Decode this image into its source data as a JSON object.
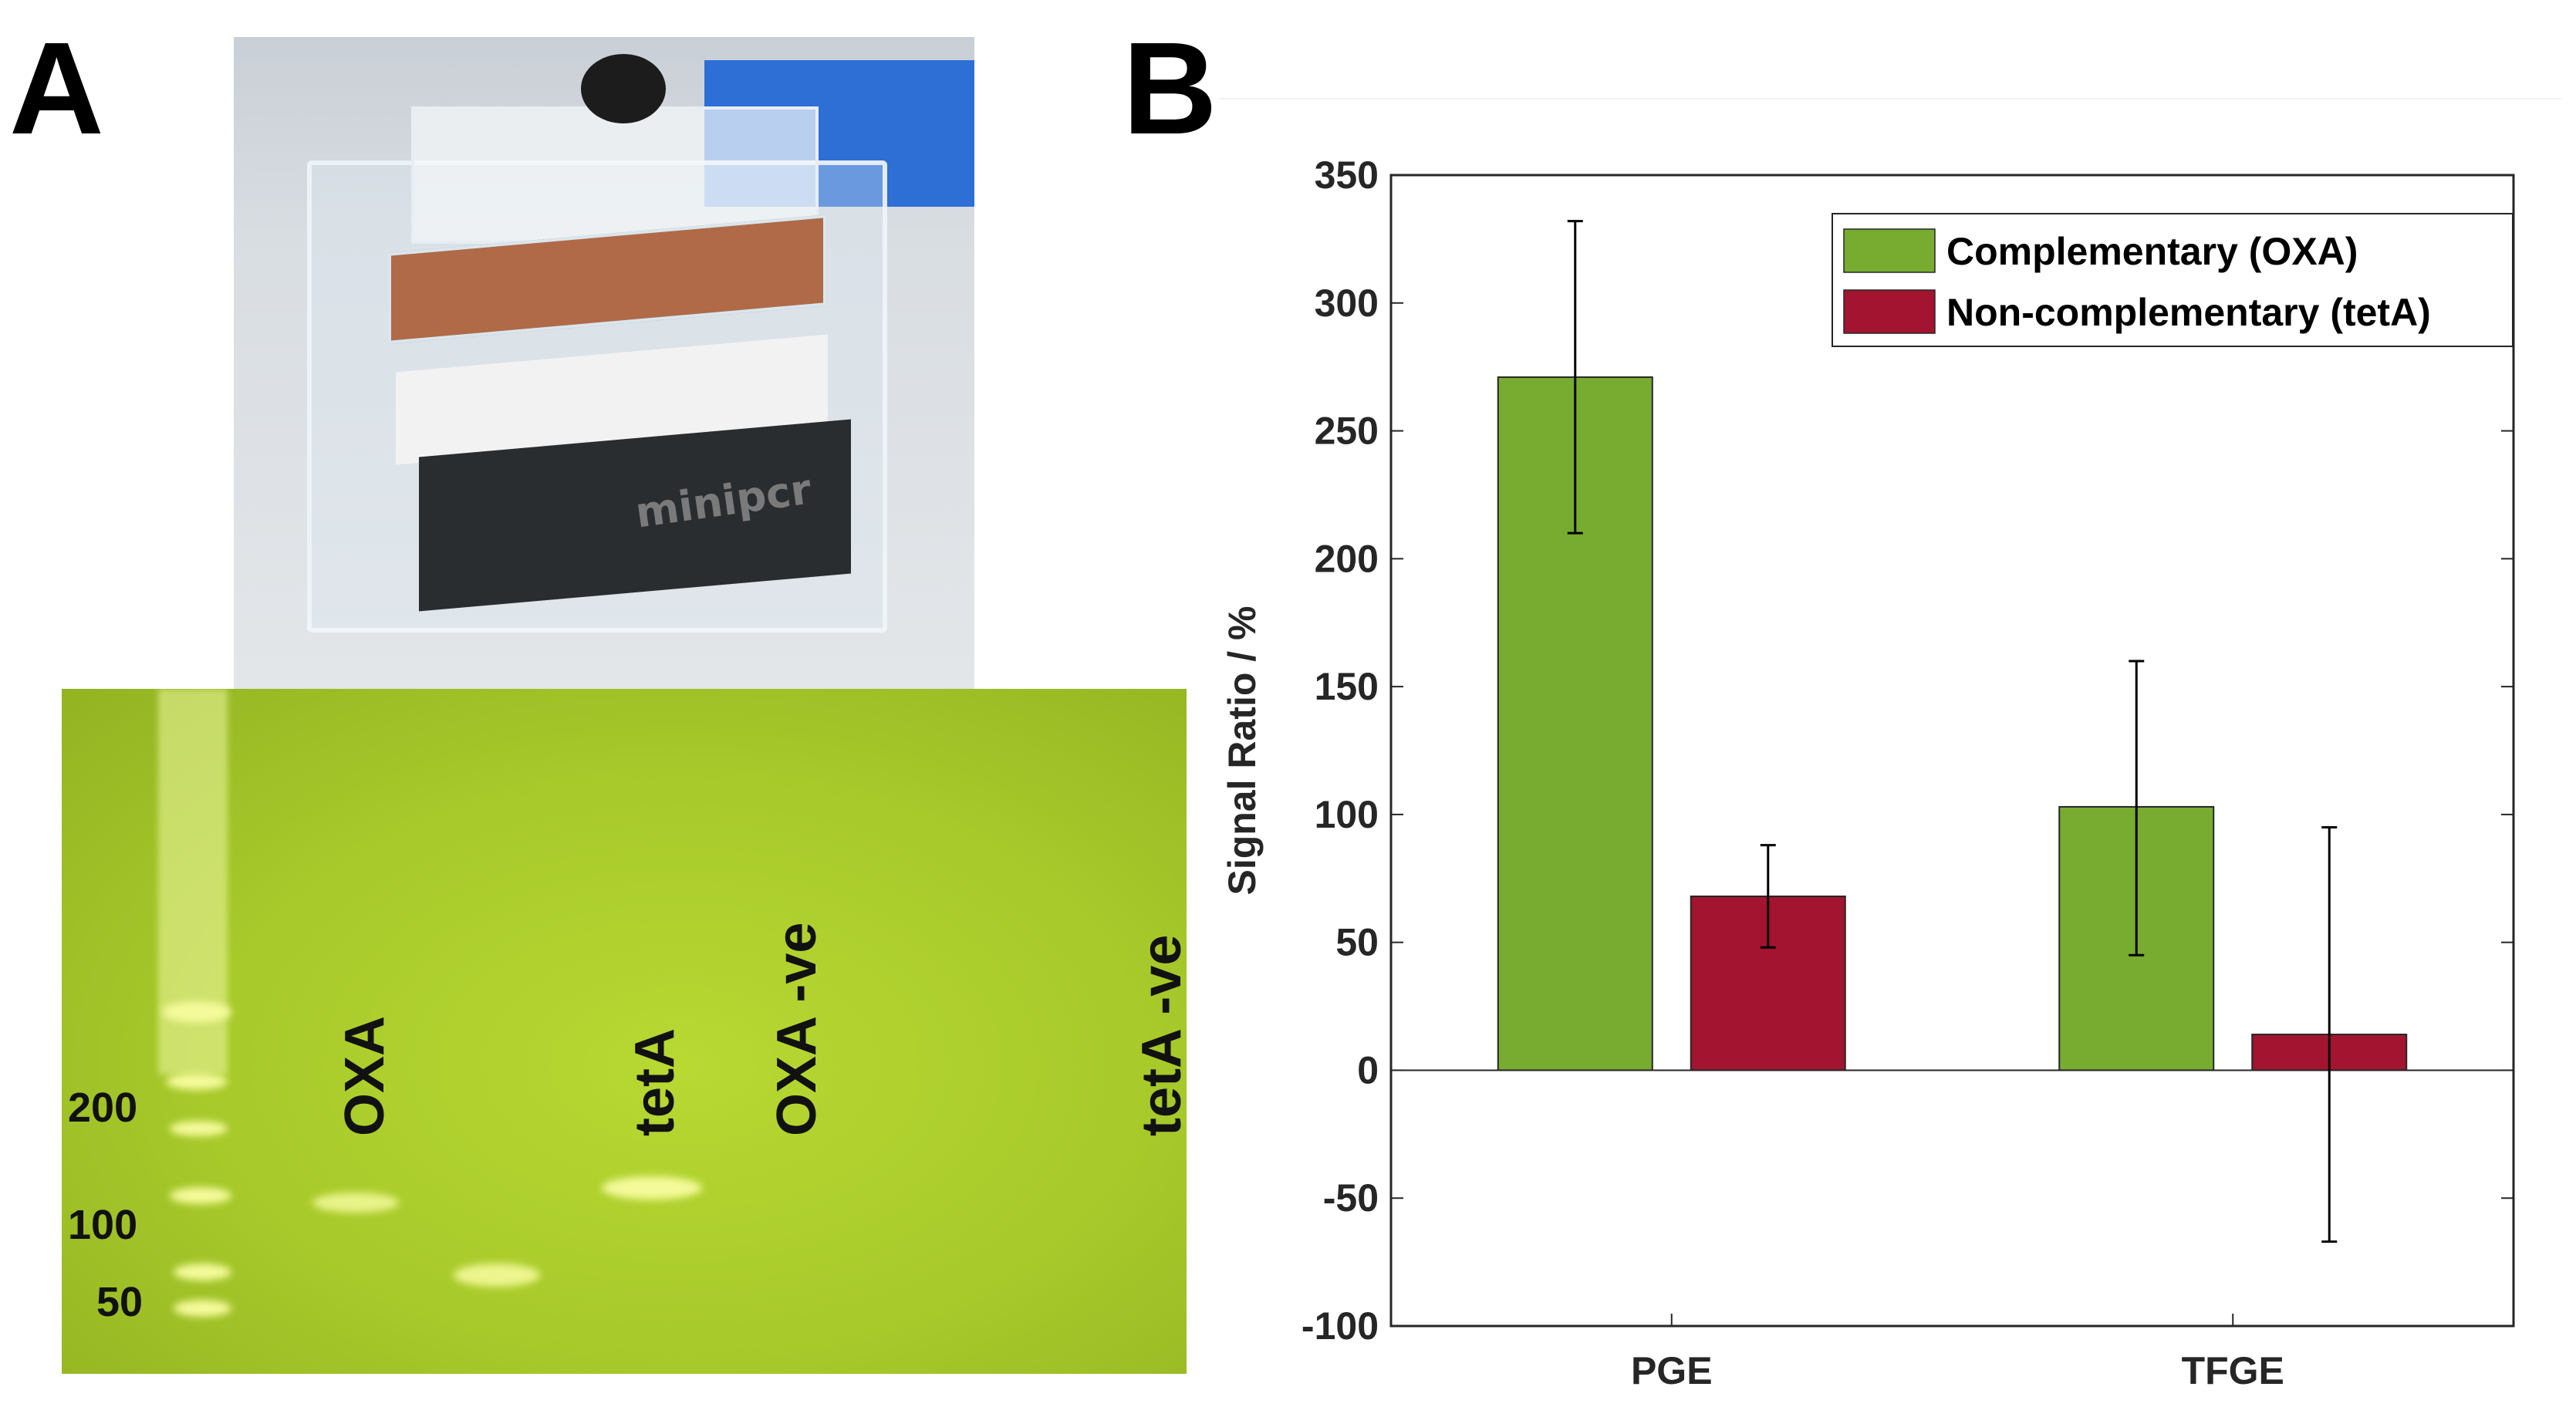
{
  "panels": {
    "a_label": "A",
    "b_label": "B"
  },
  "photo": {
    "device_text": "minipcr"
  },
  "gel": {
    "size_labels": [
      "200",
      "100",
      "50"
    ],
    "lane_labels": [
      "OXA",
      "tetA",
      "OXA -ve",
      "tetA -ve"
    ]
  },
  "chart_data": {
    "type": "bar",
    "categories": [
      "PGE",
      "TFGE"
    ],
    "series": [
      {
        "name": "Complementary (OXA)",
        "color": "#77ac30",
        "values": [
          271,
          103
        ],
        "error_low": [
          210,
          45
        ],
        "error_high": [
          332,
          160
        ]
      },
      {
        "name": "Non-complementary (tetA)",
        "color": "#a2142f",
        "values": [
          68,
          14
        ],
        "error_low": [
          48,
          -67
        ],
        "error_high": [
          88,
          95
        ]
      }
    ],
    "ylabel": "Signal Ratio / %",
    "xlabel": "",
    "ylim": [
      -100,
      350
    ],
    "yticks": [
      -100,
      -50,
      0,
      50,
      100,
      150,
      200,
      250,
      300,
      350
    ],
    "legend": "top-right",
    "grid": false
  }
}
